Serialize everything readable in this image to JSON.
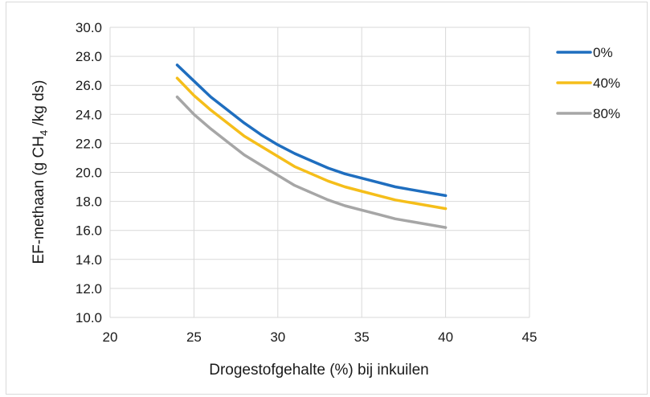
{
  "chart_data": {
    "type": "line",
    "xlabel": "Drogestofgehalte (%) bij inkuilen",
    "ylabel_parts": [
      "EF-methaan (g CH",
      "4",
      " /kg ds)"
    ],
    "xlim": [
      20,
      45
    ],
    "ylim": [
      10,
      30
    ],
    "x_ticks": [
      "20",
      "25",
      "30",
      "35",
      "40",
      "45"
    ],
    "y_ticks": [
      "10.0",
      "12.0",
      "14.0",
      "16.0",
      "18.0",
      "20.0",
      "22.0",
      "24.0",
      "26.0",
      "28.0",
      "30.0"
    ],
    "grid": true,
    "legend_position": "right",
    "x": [
      24,
      25,
      26,
      27,
      28,
      29,
      30,
      31,
      32,
      33,
      34,
      35,
      36,
      37,
      38,
      39,
      40
    ],
    "series": [
      {
        "name": "0%",
        "color": "#1f6ebf",
        "values": [
          27.4,
          26.3,
          25.2,
          24.3,
          23.4,
          22.6,
          21.9,
          21.3,
          20.8,
          20.3,
          19.9,
          19.6,
          19.3,
          19.0,
          18.8,
          18.6,
          18.4
        ]
      },
      {
        "name": "40%",
        "color": "#f5be1a",
        "values": [
          26.5,
          25.3,
          24.3,
          23.4,
          22.5,
          21.8,
          21.1,
          20.4,
          19.9,
          19.4,
          19.0,
          18.7,
          18.4,
          18.1,
          17.9,
          17.7,
          17.5
        ]
      },
      {
        "name": "80%",
        "color": "#a6a6a6",
        "values": [
          25.2,
          24.0,
          23.0,
          22.1,
          21.2,
          20.5,
          19.8,
          19.1,
          18.6,
          18.1,
          17.7,
          17.4,
          17.1,
          16.8,
          16.6,
          16.4,
          16.2
        ]
      }
    ]
  }
}
